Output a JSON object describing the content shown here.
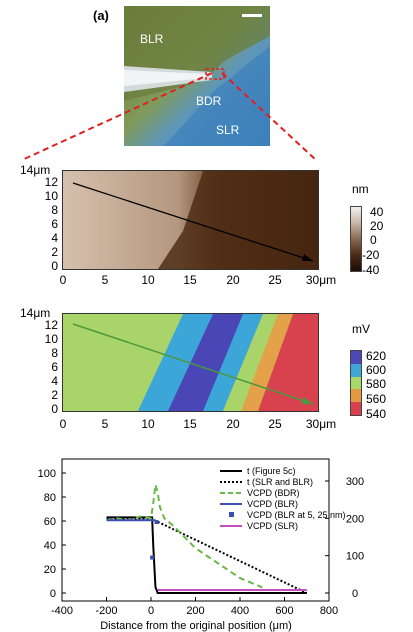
{
  "panel_label": "(a)",
  "optical": {
    "labels": [
      "BLR",
      "BDR",
      "SLR"
    ]
  },
  "afm_height": {
    "y_unit": "14μm",
    "x_unit": "30μm",
    "x_ticks": [
      "0",
      "5",
      "10",
      "15",
      "20",
      "25"
    ],
    "y_ticks": [
      "12",
      "10",
      "8",
      "6",
      "4",
      "2",
      "0"
    ],
    "colorbar_unit": "nm",
    "colorbar_ticks": [
      "40",
      "20",
      "0",
      "-20",
      "-40"
    ],
    "colors": {
      "high": "#d8c3b2",
      "low": "#3b1d0c",
      "arrow": "#000000"
    }
  },
  "kpfm": {
    "y_unit": "14μm",
    "x_unit": "30μm",
    "x_ticks": [
      "0",
      "5",
      "10",
      "15",
      "20",
      "25"
    ],
    "y_ticks": [
      "12",
      "10",
      "8",
      "6",
      "4",
      "2",
      "0"
    ],
    "colorbar_unit": "mV",
    "colorbar_ticks": [
      "620",
      "600",
      "580",
      "560",
      "540"
    ],
    "colorbar_colors": [
      "#4b48b8",
      "#3fa6d6",
      "#a9d86a",
      "#e69a3f",
      "#d9404f"
    ],
    "arrow_color": "#4a9a3c"
  },
  "chart_data": {
    "type": "line",
    "xlabel": "Distance from the original position (μm)",
    "x_ticks": [
      "-400",
      "-200",
      "0",
      "200",
      "400",
      "600",
      "800"
    ],
    "xlim": [
      -400,
      800
    ],
    "y_left_ticks": [
      "100",
      "80",
      "60",
      "40",
      "20",
      "0"
    ],
    "ylim_left": [
      0,
      100
    ],
    "y_right_ticks": [
      "300",
      "200",
      "100",
      "0"
    ],
    "ylim_right": [
      0,
      300
    ],
    "legend": [
      {
        "label": "t (Figure 5c)",
        "color": "#000000",
        "style": "solid"
      },
      {
        "label": "t (SLR and BLR)",
        "color": "#000000",
        "style": "dotted"
      },
      {
        "label": "VCPD (BDR)",
        "color": "#6ab84a",
        "style": "dashed"
      },
      {
        "label": "VCPD (BLR)",
        "color": "#3a4fb0",
        "style": "solid"
      },
      {
        "label": "VCPD (BLR at 5, 25 nm)",
        "color": "#3a4fb0",
        "style": "square"
      },
      {
        "label": "VCPD (SLR)",
        "color": "#c04fc0",
        "style": "solid"
      }
    ],
    "series": [
      {
        "axis": "left",
        "x": [
          -200,
          5,
          10,
          20,
          30,
          700
        ],
        "y": [
          63,
          63,
          40,
          5,
          0,
          0
        ]
      },
      {
        "axis": "left",
        "x": [
          -200,
          0,
          700
        ],
        "y": [
          62,
          62,
          0
        ]
      },
      {
        "axis": "right",
        "x": [
          -200,
          -150,
          -100,
          -50,
          0,
          10,
          20,
          30,
          40,
          60,
          100,
          200,
          300,
          400,
          500
        ],
        "y": [
          195,
          200,
          195,
          205,
          200,
          240,
          290,
          270,
          230,
          200,
          180,
          120,
          80,
          40,
          15
        ]
      },
      {
        "axis": "right",
        "x": [
          -200,
          20
        ],
        "y": [
          195,
          195
        ]
      },
      {
        "axis": "right",
        "x": [
          5,
          25
        ],
        "y": [
          95,
          190
        ]
      },
      {
        "axis": "right",
        "x": [
          30,
          700
        ],
        "y": [
          8,
          8
        ]
      }
    ]
  }
}
